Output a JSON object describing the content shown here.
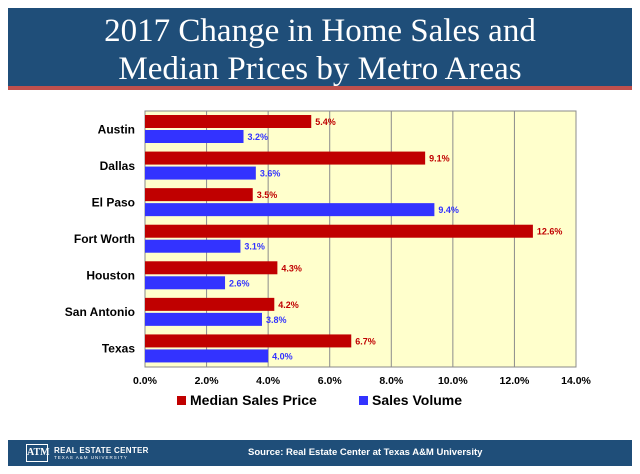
{
  "header": {
    "title_line1": "2017 Change in Home Sales and",
    "title_line2": "Median Prices by Metro Areas"
  },
  "footer": {
    "logo_mark": "ATM",
    "logo_name": "REAL ESTATE CENTER",
    "logo_sub": "TEXAS A&M UNIVERSITY",
    "source": "Source:  Real Estate Center at Texas A&M University"
  },
  "colors": {
    "median_price": "#c00000",
    "sales_volume": "#3333ff",
    "plot_bg": "#ffffcc",
    "header_bg": "#1f4e79",
    "accent": "#c0504d"
  },
  "chart_data": {
    "type": "bar",
    "orientation": "horizontal",
    "title": "2017 Change in Home Sales and Median Prices by Metro Areas",
    "categories": [
      "Austin",
      "Dallas",
      "El Paso",
      "Fort Worth",
      "Houston",
      "San Antonio",
      "Texas"
    ],
    "series": [
      {
        "name": "Median Sales Price",
        "values": [
          5.4,
          9.1,
          3.5,
          12.6,
          4.3,
          4.2,
          6.7
        ],
        "labels": [
          "5.4%",
          "9.1%",
          "3.5%",
          "12.6%",
          "4.3%",
          "4.2%",
          "6.7%"
        ]
      },
      {
        "name": "Sales Volume",
        "values": [
          3.2,
          3.6,
          9.4,
          3.1,
          2.6,
          3.8,
          4.0
        ],
        "labels": [
          "3.2%",
          "3.6%",
          "9.4%",
          "3.1%",
          "2.6%",
          "3.8%",
          "4.0%"
        ]
      }
    ],
    "xlim": [
      0,
      14
    ],
    "xticks": [
      0,
      2,
      4,
      6,
      8,
      10,
      12,
      14
    ],
    "xtick_labels": [
      "0.0%",
      "2.0%",
      "4.0%",
      "6.0%",
      "8.0%",
      "10.0%",
      "12.0%",
      "14.0%"
    ],
    "xlabel": "",
    "ylabel": "",
    "grid": true,
    "legend_position": "bottom"
  }
}
